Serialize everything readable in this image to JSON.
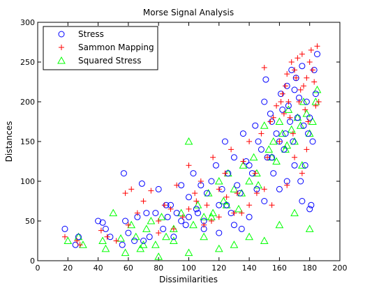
{
  "chart_data": {
    "type": "scatter",
    "title": "Morse Signal Analysis",
    "xlabel": "Dissimilarities",
    "ylabel": "Distances",
    "xlim": [
      0,
      200
    ],
    "ylim": [
      0,
      300
    ],
    "xticks": [
      0,
      20,
      40,
      60,
      80,
      100,
      120,
      140,
      160,
      180,
      200
    ],
    "yticks": [
      0,
      50,
      100,
      150,
      200,
      250,
      300
    ],
    "grid": false,
    "legend_position": "top-left",
    "series": [
      {
        "name": "Stress",
        "marker": "circle",
        "color": "#0000ff",
        "x": [
          18,
          25,
          27,
          40,
          43,
          45,
          48,
          56,
          57,
          58,
          60,
          64,
          66,
          69,
          72,
          74,
          78,
          80,
          83,
          86,
          88,
          92,
          95,
          98,
          100,
          103,
          106,
          108,
          110,
          112,
          115,
          118,
          120,
          122,
          124,
          126,
          128,
          130,
          132,
          134,
          136,
          138,
          140,
          142,
          144,
          146,
          148,
          150,
          151,
          152,
          154,
          155,
          156,
          158,
          160,
          161,
          162,
          163,
          164,
          165,
          166,
          167,
          168,
          169,
          170,
          171,
          172,
          173,
          174,
          175,
          176,
          177,
          178,
          179,
          180,
          181,
          182,
          183,
          184,
          185,
          110,
          125,
          135,
          145,
          155,
          165,
          175,
          180,
          170,
          160,
          150,
          140,
          130,
          120,
          100,
          90,
          70,
          85,
          95,
          105
        ],
        "y": [
          40,
          20,
          30,
          50,
          48,
          40,
          30,
          20,
          110,
          50,
          35,
          25,
          55,
          97,
          60,
          30,
          60,
          90,
          40,
          55,
          70,
          60,
          95,
          45,
          80,
          110,
          60,
          95,
          40,
          85,
          100,
          120,
          70,
          90,
          150,
          110,
          60,
          130,
          95,
          85,
          160,
          125,
          120,
          110,
          170,
          150,
          140,
          200,
          228,
          130,
          185,
          175,
          110,
          160,
          150,
          210,
          190,
          140,
          160,
          220,
          195,
          175,
          240,
          150,
          215,
          230,
          180,
          205,
          100,
          245,
          170,
          120,
          200,
          160,
          180,
          70,
          150,
          240,
          210,
          260,
          50,
          70,
          40,
          90,
          130,
          100,
          75,
          65,
          120,
          90,
          75,
          55,
          45,
          35,
          55,
          30,
          25,
          70,
          50,
          65
        ]
      },
      {
        "name": "Sammon Mapping",
        "marker": "plus",
        "color": "#ff0000",
        "x": [
          18,
          26,
          28,
          42,
          46,
          52,
          58,
          60,
          62,
          66,
          70,
          75,
          80,
          84,
          88,
          92,
          96,
          100,
          104,
          108,
          112,
          116,
          120,
          124,
          128,
          132,
          136,
          140,
          144,
          148,
          150,
          152,
          154,
          156,
          158,
          160,
          161,
          162,
          163,
          164,
          165,
          166,
          167,
          168,
          169,
          170,
          171,
          172,
          173,
          174,
          175,
          176,
          177,
          178,
          179,
          180,
          181,
          182,
          183,
          184,
          185,
          186,
          150,
          140,
          130,
          120,
          110,
          100,
          90,
          80,
          170,
          175,
          178,
          165,
          155,
          145,
          135,
          125,
          115,
          105
        ],
        "y": [
          30,
          25,
          20,
          38,
          30,
          25,
          85,
          45,
          90,
          60,
          75,
          88,
          50,
          70,
          65,
          95,
          55,
          120,
          85,
          100,
          70,
          130,
          90,
          110,
          140,
          85,
          125,
          150,
          110,
          160,
          243,
          130,
          175,
          180,
          195,
          150,
          200,
          210,
          185,
          220,
          235,
          200,
          180,
          250,
          160,
          240,
          230,
          255,
          200,
          215,
          260,
          220,
          190,
          230,
          175,
          250,
          265,
          240,
          225,
          195,
          270,
          200,
          90,
          70,
          60,
          55,
          45,
          65,
          40,
          35,
          130,
          110,
          140,
          95,
          70,
          85,
          60,
          80,
          50,
          75
        ]
      },
      {
        "name": "Squared Stress",
        "marker": "triangle",
        "color": "#00ff00",
        "x": [
          20,
          27,
          30,
          43,
          45,
          50,
          55,
          58,
          62,
          65,
          68,
          72,
          75,
          78,
          82,
          85,
          90,
          95,
          100,
          103,
          106,
          110,
          113,
          116,
          120,
          123,
          126,
          130,
          133,
          136,
          140,
          143,
          146,
          150,
          153,
          156,
          158,
          160,
          162,
          164,
          166,
          168,
          170,
          172,
          174,
          176,
          178,
          180,
          182,
          184,
          185,
          130,
          140,
          150,
          160,
          170,
          180,
          120,
          110,
          100,
          90,
          80,
          70,
          145,
          155,
          165,
          175,
          135,
          125,
          115
        ],
        "y": [
          25,
          30,
          20,
          25,
          15,
          60,
          28,
          10,
          45,
          30,
          15,
          40,
          50,
          20,
          55,
          30,
          40,
          60,
          150,
          45,
          70,
          55,
          85,
          60,
          100,
          75,
          110,
          90,
          65,
          120,
          100,
          130,
          95,
          170,
          140,
          150,
          125,
          175,
          160,
          140,
          190,
          165,
          150,
          180,
          170,
          200,
          185,
          160,
          175,
          200,
          215,
          20,
          30,
          25,
          45,
          60,
          40,
          15,
          30,
          10,
          25,
          5,
          20,
          110,
          130,
          145,
          120,
          85,
          70,
          55
        ]
      }
    ]
  }
}
